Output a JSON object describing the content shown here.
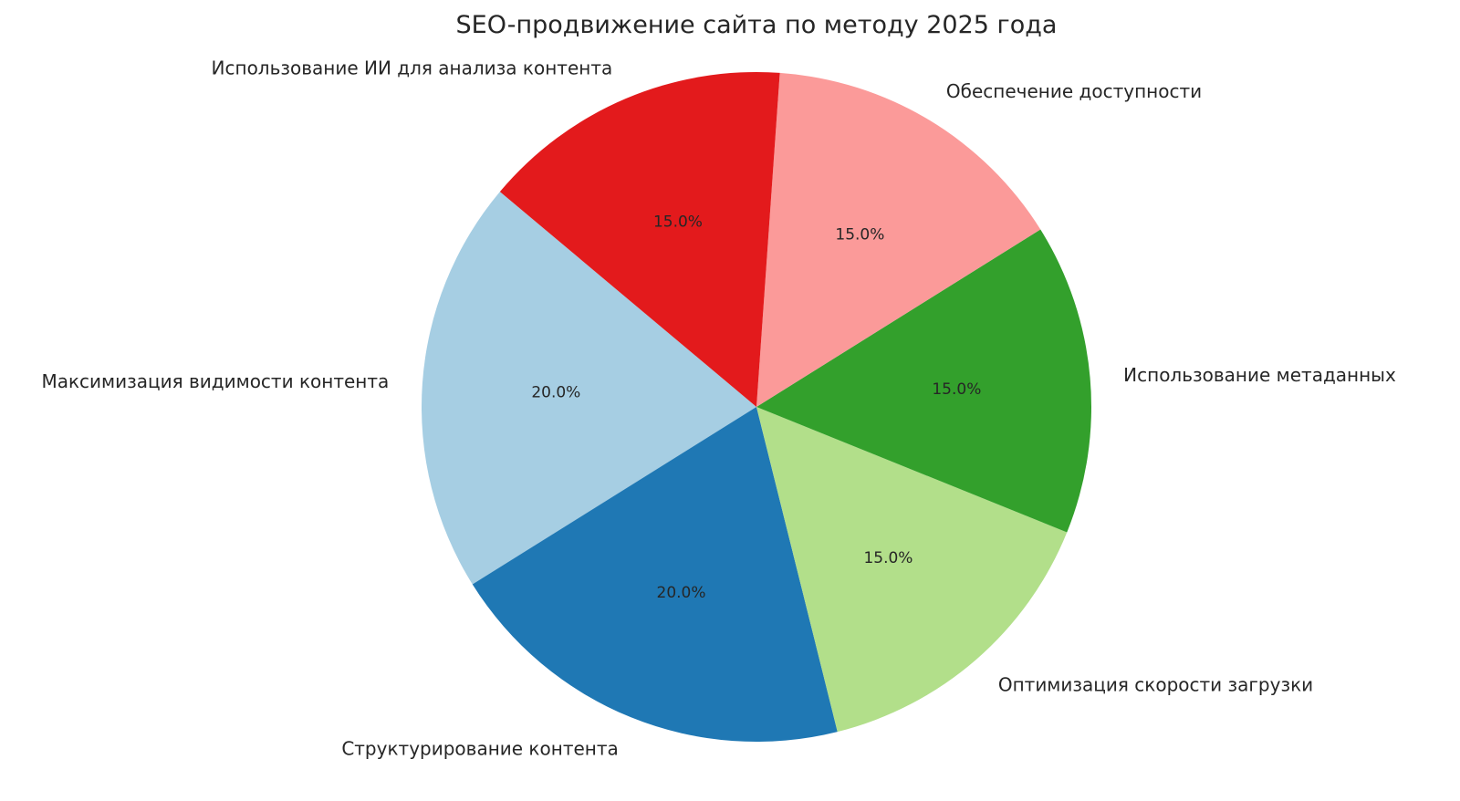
{
  "chart_data": {
    "type": "pie",
    "title": "SEO-продвижение сайта по методу 2025 года",
    "start_angle_deg": 140,
    "direction": "counterclockwise",
    "autopct_format": "%.1f%%",
    "slices": [
      {
        "label": "Максимизация видимости контента",
        "value": 20.0,
        "color": "#a6cee3"
      },
      {
        "label": "Структурирование контента",
        "value": 20.0,
        "color": "#1f78b4"
      },
      {
        "label": "Оптимизация скорости загрузки",
        "value": 15.0,
        "color": "#b2df8a"
      },
      {
        "label": "Использование метаданных",
        "value": 15.0,
        "color": "#33a02c"
      },
      {
        "label": "Обеспечение доступности",
        "value": 15.0,
        "color": "#fb9a99"
      },
      {
        "label": "Использование ИИ для анализа контента",
        "value": 15.0,
        "color": "#e31a1c"
      }
    ]
  }
}
